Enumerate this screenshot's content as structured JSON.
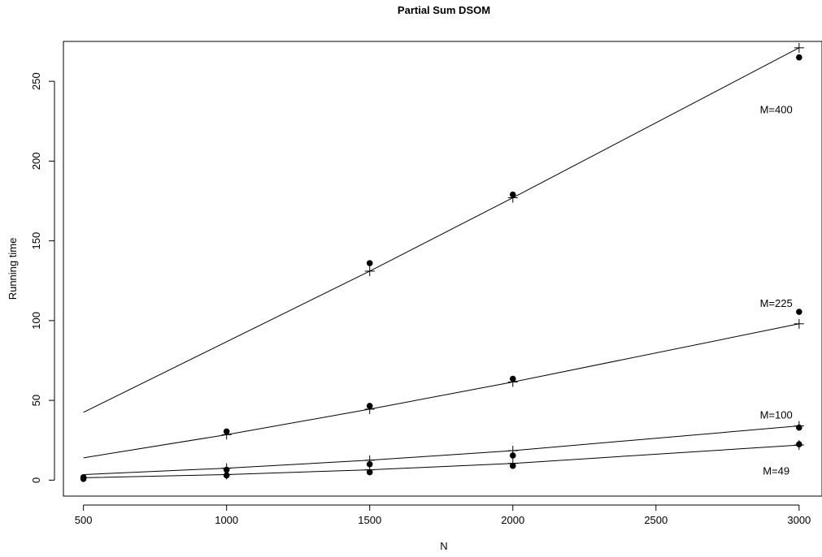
{
  "chart_data": {
    "type": "scatter",
    "title": "Partial Sum DSOM",
    "xlabel": "N",
    "ylabel": "Running time",
    "xlim": [
      430,
      3080
    ],
    "ylim": [
      -10,
      275
    ],
    "x_ticks": [
      500,
      1000,
      1500,
      2000,
      2500,
      3000
    ],
    "y_ticks": [
      0,
      50,
      100,
      150,
      200,
      250
    ],
    "grid": false,
    "x": [
      500,
      1000,
      1500,
      2000,
      3000
    ],
    "series": [
      {
        "name": "M=400",
        "observed": [
          null,
          null,
          136,
          179,
          265
        ],
        "fitted_x": [
          500,
          1500,
          2000,
          3000
        ],
        "fitted": [
          42.5,
          131,
          177,
          271
        ]
      },
      {
        "name": "M=225",
        "observed": [
          null,
          30.5,
          46.5,
          63.5,
          105.5
        ],
        "fitted_x": [
          500,
          1000,
          1500,
          2000,
          3000
        ],
        "fitted": [
          14,
          28.5,
          44.5,
          61.5,
          98
        ]
      },
      {
        "name": "M=100",
        "observed": [
          1.8,
          6.5,
          10,
          15.5,
          33
        ],
        "fitted_x": [
          500,
          1000,
          1500,
          2000,
          3000
        ],
        "fitted": [
          3.5,
          7.5,
          12.5,
          18.5,
          34
        ]
      },
      {
        "name": "M=49",
        "observed": [
          0.8,
          3,
          5,
          9,
          22.5
        ],
        "fitted_x": [
          500,
          1000,
          1500,
          2000,
          3000
        ],
        "fitted": [
          1.5,
          3.5,
          6.5,
          10.5,
          22
        ]
      }
    ],
    "curve_labels": [
      {
        "text": "M=400",
        "x": 2920,
        "y": 230
      },
      {
        "text": "M=225",
        "x": 2920,
        "y": 108.5
      },
      {
        "text": "M=100",
        "x": 2920,
        "y": 38.5
      },
      {
        "text": "M=49",
        "x": 2920,
        "y": 3.5
      }
    ]
  }
}
